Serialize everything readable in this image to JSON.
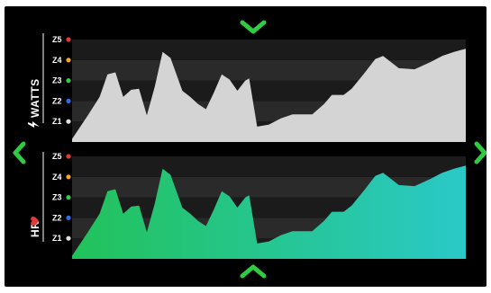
{
  "nav": {
    "up_icon": "chevron-up-icon",
    "down_icon": "chevron-down-icon",
    "left_icon": "chevron-left-icon",
    "right_icon": "chevron-right-icon",
    "arrow_color": "#2ecc40"
  },
  "colors": {
    "Z5": "#e53935",
    "Z4": "#f5a623",
    "Z3": "#2ecc40",
    "Z2": "#2f6fe6",
    "Z1": "#e0e0e0",
    "watts_fill": "#d4d4d4",
    "hr_fill_start": "#22c25a",
    "hr_fill_end": "#2ac9c8",
    "band_dark": "#2b2b2b",
    "band_darker": "#1c1c1c"
  },
  "chart_data": [
    {
      "type": "area",
      "name": "watts",
      "label": "WATTS",
      "label_icon": "lightning-bolt-icon",
      "zones": [
        "Z1",
        "Z2",
        "Z3",
        "Z4",
        "Z5"
      ],
      "ylim": [
        0,
        5
      ],
      "x": [
        0,
        4,
        7,
        9,
        11,
        13,
        15,
        17,
        19,
        21,
        23,
        25,
        28,
        30,
        32,
        34,
        36,
        38,
        40,
        42,
        44,
        45,
        47,
        50,
        53,
        56,
        58,
        61,
        64,
        66,
        69,
        71,
        74,
        77,
        79,
        83,
        87,
        91,
        94,
        97,
        100
      ],
      "values": [
        0.15,
        1.3,
        2.2,
        3.3,
        3.4,
        2.2,
        2.55,
        2.6,
        1.3,
        2.7,
        4.4,
        4.1,
        2.5,
        2.2,
        1.85,
        1.6,
        2.4,
        3.3,
        3.05,
        2.5,
        3.0,
        3.1,
        0.75,
        0.85,
        1.15,
        1.35,
        1.35,
        1.35,
        1.85,
        2.3,
        2.3,
        2.6,
        3.3,
        4.05,
        4.2,
        3.6,
        3.55,
        3.9,
        4.2,
        4.4,
        4.55
      ]
    },
    {
      "type": "area",
      "name": "hr",
      "label": "HR",
      "label_icon": "heart-icon",
      "zones": [
        "Z1",
        "Z2",
        "Z3",
        "Z4",
        "Z5"
      ],
      "ylim": [
        0,
        5
      ],
      "x": [
        0,
        4,
        7,
        9,
        11,
        13,
        15,
        17,
        19,
        21,
        23,
        25,
        28,
        30,
        32,
        34,
        36,
        38,
        40,
        42,
        44,
        45,
        47,
        50,
        53,
        56,
        58,
        61,
        64,
        66,
        69,
        71,
        74,
        77,
        79,
        83,
        87,
        91,
        94,
        97,
        100
      ],
      "values": [
        0.15,
        1.3,
        2.2,
        3.3,
        3.4,
        2.2,
        2.55,
        2.6,
        1.3,
        2.7,
        4.4,
        4.1,
        2.5,
        2.2,
        1.85,
        1.6,
        2.4,
        3.3,
        3.05,
        2.5,
        3.0,
        3.1,
        0.75,
        0.85,
        1.15,
        1.35,
        1.35,
        1.35,
        1.85,
        2.3,
        2.3,
        2.6,
        3.3,
        4.05,
        4.2,
        3.6,
        3.55,
        3.9,
        4.2,
        4.4,
        4.55
      ]
    }
  ]
}
